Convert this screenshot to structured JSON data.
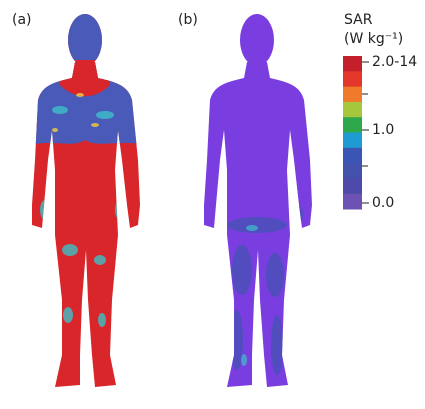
{
  "panels": [
    {
      "label": "(a)"
    },
    {
      "label": "(b)"
    }
  ],
  "colorbar": {
    "title": "SAR",
    "unit": "(W kg⁻¹)",
    "colors": [
      "#c4202c",
      "#e2372a",
      "#ef7a2c",
      "#a6c63c",
      "#2fa84c",
      "#1e9bd2",
      "#3a55b4",
      "#4350ac",
      "#4d4aa9",
      "#6b52b3"
    ],
    "ticks": [
      "2.0-14",
      "1.0",
      "0.0"
    ]
  }
}
